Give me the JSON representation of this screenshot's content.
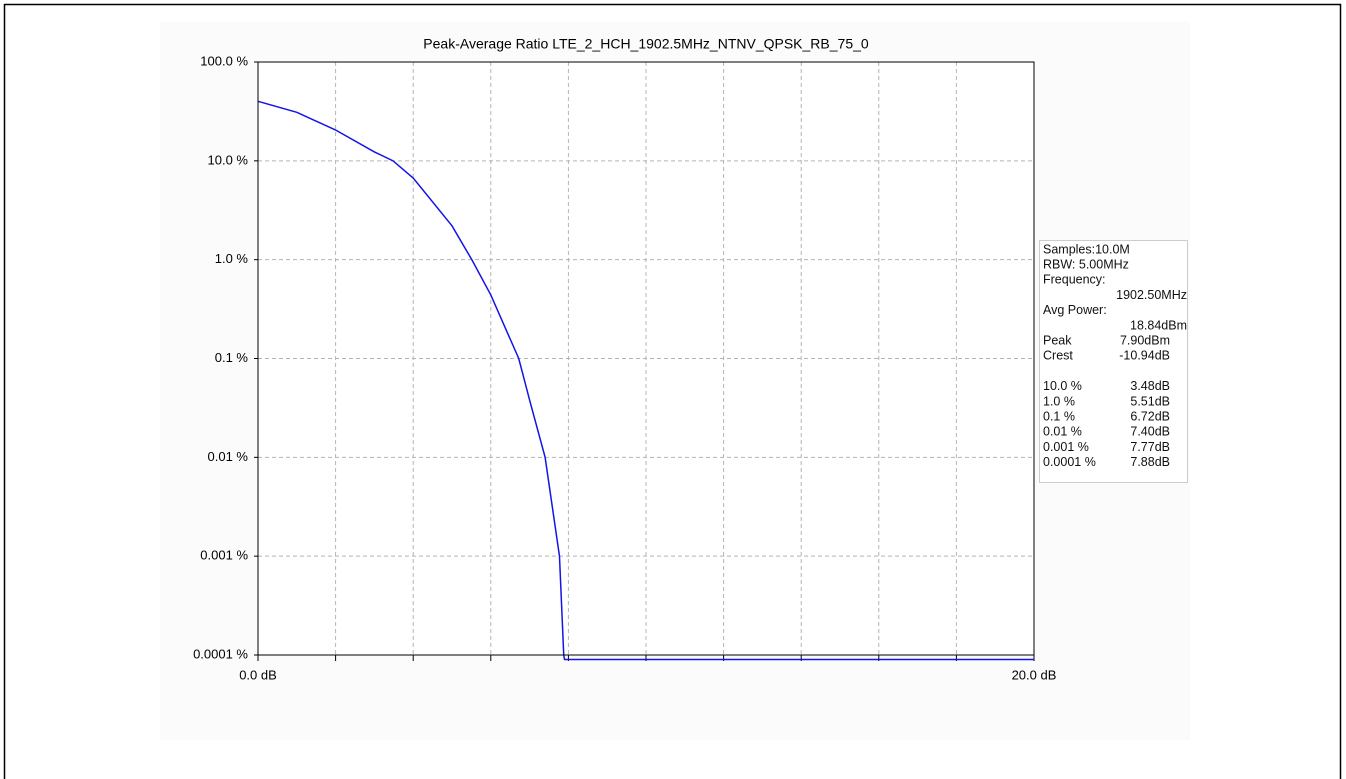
{
  "chart_data": {
    "type": "line",
    "title": "Peak-Average Ratio LTE_2_HCH_1902.5MHz_NTNV_QPSK_RB_75_0",
    "log_y": true,
    "grid": true,
    "xlim": [
      0,
      20
    ],
    "xticks": [
      {
        "value": 0,
        "label": "0.0 dB"
      },
      {
        "value": 20,
        "label": "20.0 dB"
      }
    ],
    "xminor": [
      2,
      4,
      6,
      8,
      10,
      12,
      14,
      16,
      18
    ],
    "ylim": [
      0.0001,
      100
    ],
    "yticks": [
      {
        "value": 100,
        "label": "100.0 %"
      },
      {
        "value": 10,
        "label": "10.0 %"
      },
      {
        "value": 1,
        "label": "1.0 %"
      },
      {
        "value": 0.1,
        "label": "0.1 %"
      },
      {
        "value": 0.01,
        "label": "0.01 %"
      },
      {
        "value": 0.001,
        "label": "0.001 %"
      },
      {
        "value": 0.0001,
        "label": "0.0001 %"
      }
    ],
    "series": [
      {
        "color": "#1414e6",
        "x": [
          0,
          1,
          2,
          3,
          3.48,
          4,
          5,
          5.51,
          6,
          6.72,
          7,
          7.4,
          7.77,
          7.88,
          7.9,
          20
        ],
        "values": [
          40,
          31,
          20.5,
          12.3,
          10,
          6.7,
          2.2,
          1,
          0.44,
          0.1,
          0.038,
          0.01,
          0.001,
          0.0001,
          9e-05,
          9e-05
        ]
      }
    ],
    "info": [
      [
        {
          "label": "Samples:10.0M"
        },
        {
          "label": "RBW: 5.00MHz"
        },
        {
          "label": "Frequency:"
        },
        {
          "value": "1902.50MHz"
        },
        {
          "label": "Avg Power:"
        },
        {
          "value": "18.84dBm"
        },
        {
          "label": "Peak",
          "value": "7.90dBm"
        },
        {
          "label": "Crest",
          "value": "-10.94dB"
        }
      ],
      [
        {
          "label": "10.0 %",
          "value": "3.48dB"
        },
        {
          "label": "1.0 %",
          "value": "5.51dB"
        },
        {
          "label": "0.1 %",
          "value": "6.72dB"
        },
        {
          "label": "0.01 %",
          "value": "7.40dB"
        },
        {
          "label": "0.001 %",
          "value": "7.77dB"
        },
        {
          "label": "0.0001 %",
          "value": "7.88dB"
        }
      ]
    ]
  }
}
